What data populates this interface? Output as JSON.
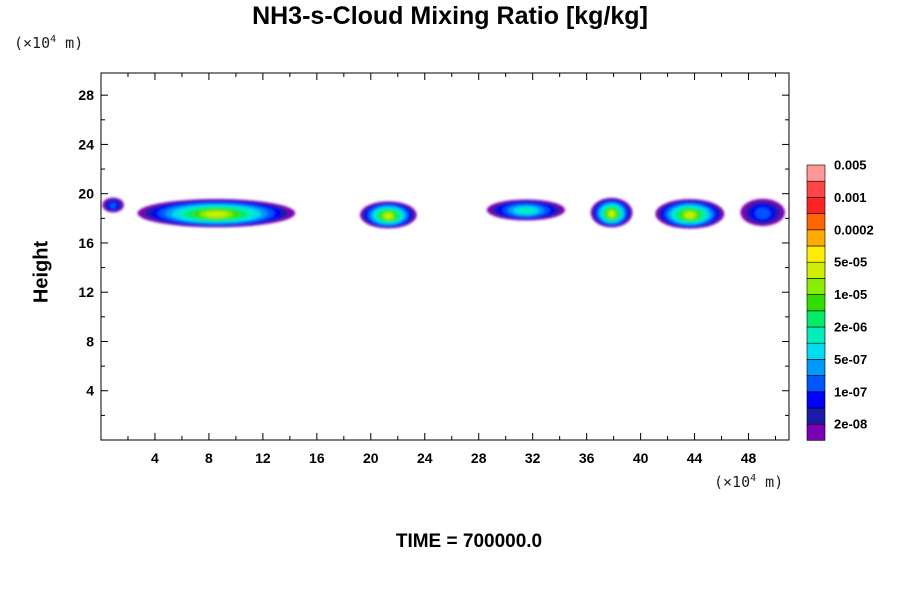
{
  "chart_data": {
    "type": "heatmap",
    "title": "NH3-s-Cloud Mixing Ratio [kg/kg]",
    "ylabel": "Height",
    "x_unit": {
      "prefix": "(×10",
      "exp": "4",
      "suffix": " m)"
    },
    "y_unit": {
      "prefix": "(×10",
      "exp": "4",
      "suffix": " m)"
    },
    "footer": "TIME = 700000.0",
    "xlim": [
      0,
      51
    ],
    "ylim": [
      0,
      29.8
    ],
    "x_ticks": [
      4,
      8,
      12,
      16,
      20,
      24,
      28,
      32,
      36,
      40,
      44,
      48
    ],
    "y_ticks": [
      4,
      8,
      12,
      16,
      20,
      24,
      28
    ],
    "colorbar": {
      "colors": [
        "#7b00b4",
        "#1a1aa8",
        "#0000ff",
        "#0055ff",
        "#0099ff",
        "#00ddee",
        "#00eebb",
        "#00ee66",
        "#33dd00",
        "#88ee00",
        "#ccee00",
        "#ffee00",
        "#ffaa00",
        "#ff6600",
        "#ff2222",
        "#ff4444",
        "#ff9999"
      ],
      "labels": [
        "2e-08",
        "1e-07",
        "5e-07",
        "2e-06",
        "1e-05",
        "5e-05",
        "0.0002",
        "0.001",
        "0.005"
      ]
    },
    "cloud_regions": [
      {
        "x": [
          0.1,
          1.7
        ],
        "y": [
          18.6,
          19.8
        ],
        "level": 3
      },
      {
        "x": [
          2.7,
          14.4
        ],
        "y": [
          17.5,
          19.8
        ],
        "level": 10
      },
      {
        "x": [
          19.2,
          23.4
        ],
        "y": [
          17.4,
          19.6
        ],
        "level": 10
      },
      {
        "x": [
          28.6,
          34.4
        ],
        "y": [
          18.0,
          19.7
        ],
        "level": 6
      },
      {
        "x": [
          36.3,
          39.4
        ],
        "y": [
          17.5,
          19.9
        ],
        "level": 10
      },
      {
        "x": [
          41.1,
          46.2
        ],
        "y": [
          17.4,
          19.8
        ],
        "level": 10
      },
      {
        "x": [
          47.4,
          50.7
        ],
        "y": [
          17.6,
          19.8
        ],
        "level": 3
      }
    ]
  }
}
